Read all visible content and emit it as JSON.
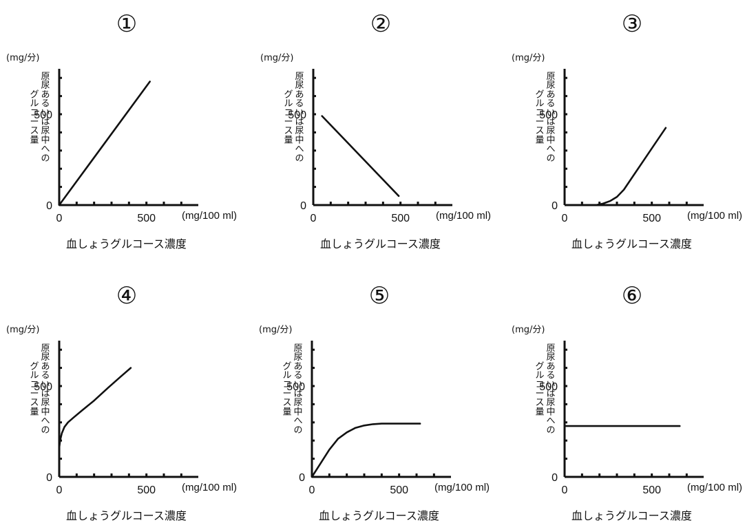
{
  "chart_data": [
    {
      "type": "line",
      "panel_label": "①",
      "y_unit": "(mg/分)",
      "ylabel": "原尿あるいは尿中へのグルコース量",
      "ylabel_columns": [
        "原尿あるいは尿中への",
        "グルコース量"
      ],
      "xlabel": "血しょうグルコース濃度",
      "x_unit": "(mg/100 ml)",
      "x_tick_labels": [
        "0",
        "500"
      ],
      "y_tick_labels": [
        "0",
        "500"
      ],
      "xlim": [
        0,
        750
      ],
      "ylim": [
        0,
        750
      ],
      "series": [
        {
          "x": [
            0,
            520
          ],
          "y": [
            0,
            680
          ]
        }
      ]
    },
    {
      "type": "line",
      "panel_label": "②",
      "y_unit": "(mg/分)",
      "ylabel": "原尿あるいは尿中へのグルコース量",
      "ylabel_columns": [
        "原尿あるいは尿中への",
        "グルコース量"
      ],
      "xlabel": "血しょうグルコース濃度",
      "x_unit": "(mg/100 ml)",
      "x_tick_labels": [
        "0",
        "500"
      ],
      "y_tick_labels": [
        "0",
        "500"
      ],
      "xlim": [
        0,
        750
      ],
      "ylim": [
        0,
        750
      ],
      "series": [
        {
          "x": [
            50,
            490
          ],
          "y": [
            490,
            50
          ]
        }
      ]
    },
    {
      "type": "line",
      "panel_label": "③",
      "y_unit": "(mg/分)",
      "ylabel": "原尿あるいは尿中へのグルコース量",
      "ylabel_columns": [
        "原尿あるいは尿中への",
        "グルコース量"
      ],
      "xlabel": "血しょうグルコース濃度",
      "x_unit": "(mg/100 ml)",
      "x_tick_labels": [
        "0",
        "500"
      ],
      "y_tick_labels": [
        "0",
        "500"
      ],
      "xlim": [
        0,
        750
      ],
      "ylim": [
        0,
        750
      ],
      "series": [
        {
          "x": [
            180,
            220,
            260,
            300,
            340,
            400,
            460,
            520,
            580
          ],
          "y": [
            0,
            8,
            22,
            45,
            85,
            170,
            255,
            340,
            425
          ]
        }
      ]
    },
    {
      "type": "line",
      "panel_label": "④",
      "y_unit": "(mg/分)",
      "ylabel": "原尿あるいは尿中へのグルコース量",
      "ylabel_columns": [
        "原尿あるいは尿中への",
        "グルコース量"
      ],
      "xlabel": "血しょうグルコース濃度",
      "x_unit": "(mg/100 ml)",
      "x_tick_labels": [
        "0",
        "500"
      ],
      "y_tick_labels": [
        "0",
        "500"
      ],
      "xlim": [
        0,
        750
      ],
      "ylim": [
        0,
        750
      ],
      "series": [
        {
          "x": [
            0,
            5,
            15,
            30,
            50,
            80,
            130,
            200,
            280,
            350,
            410
          ],
          "y": [
            160,
            200,
            240,
            275,
            300,
            325,
            365,
            420,
            490,
            550,
            600
          ]
        }
      ]
    },
    {
      "type": "line",
      "panel_label": "⑤",
      "y_unit": "(mg/分)",
      "ylabel": "原尿あるいは尿中へのグルコース量",
      "ylabel_columns": [
        "原尿あるいは尿中への",
        "グルコース量"
      ],
      "xlabel": "血しょうグルコース濃度",
      "x_unit": "(mg/100 ml)",
      "x_tick_labels": [
        "0",
        "500"
      ],
      "y_tick_labels": [
        "0",
        "500"
      ],
      "xlim": [
        0,
        750
      ],
      "ylim": [
        0,
        750
      ],
      "series": [
        {
          "x": [
            0,
            50,
            100,
            150,
            200,
            250,
            300,
            350,
            400,
            500,
            620
          ],
          "y": [
            0,
            75,
            150,
            210,
            245,
            270,
            283,
            290,
            293,
            293,
            293
          ]
        }
      ]
    },
    {
      "type": "line",
      "panel_label": "⑥",
      "y_unit": "(mg/分)",
      "ylabel": "原尿あるいは尿中へのグルコース量",
      "ylabel_columns": [
        "原尿あるいは尿中への",
        "グルコース量"
      ],
      "xlabel": "血しょうグルコース濃度",
      "x_unit": "(mg/100 ml)",
      "x_tick_labels": [
        "0",
        "500"
      ],
      "y_tick_labels": [
        "0",
        "500"
      ],
      "xlim": [
        0,
        750
      ],
      "ylim": [
        0,
        750
      ],
      "series": [
        {
          "x": [
            0,
            660
          ],
          "y": [
            280,
            280
          ]
        }
      ]
    }
  ]
}
